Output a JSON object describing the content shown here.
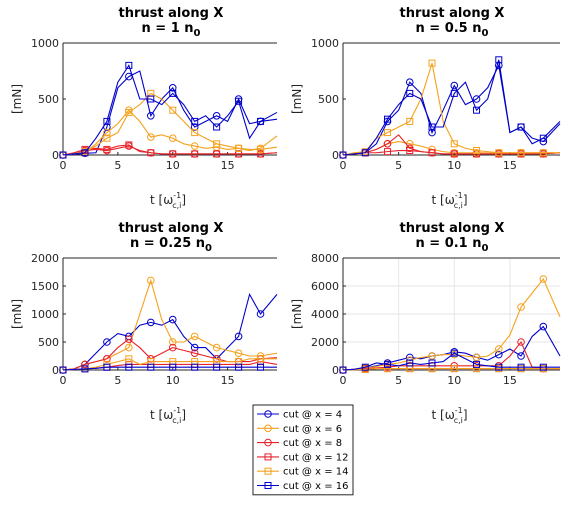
{
  "chart_data": [
    {
      "type": "line",
      "title": [
        "thrust along X",
        "n = 1 n",
        "0"
      ],
      "xlabel": "t [ω",
      "xlabel_sup": "-1",
      "xlabel_sub": "c,i",
      "xlabel_end": "]",
      "ylabel": "[mN]",
      "xlim": [
        0,
        19.5
      ],
      "ylim": [
        0,
        1000
      ],
      "xticks": [
        "0",
        "5",
        "10",
        "15"
      ],
      "xtick_values": [
        0,
        5,
        10,
        15
      ],
      "yticks": [
        "0",
        "500",
        "1000"
      ],
      "ytick_values": [
        0,
        500,
        1000
      ],
      "grid": false,
      "x": [
        0,
        1,
        2,
        3,
        4,
        5,
        6,
        7,
        8,
        9,
        10,
        11,
        12,
        13,
        14,
        15,
        16,
        17,
        18,
        19.5
      ],
      "series": [
        {
          "name": "cut @ x = 4",
          "values": [
            0,
            5,
            15,
            20,
            250,
            600,
            700,
            750,
            350,
            500,
            600,
            400,
            250,
            300,
            350,
            300,
            500,
            280,
            300,
            380
          ]
        },
        {
          "name": "cut @ x = 6",
          "values": [
            0,
            10,
            20,
            100,
            200,
            280,
            400,
            300,
            160,
            180,
            150,
            100,
            80,
            60,
            70,
            50,
            60,
            40,
            60,
            170
          ]
        },
        {
          "name": "cut @ x = 8",
          "values": [
            0,
            10,
            40,
            50,
            40,
            60,
            80,
            40,
            20,
            10,
            10,
            10,
            10,
            10,
            10,
            10,
            10,
            10,
            10,
            20
          ]
        },
        {
          "name": "cut @ x = 12",
          "values": [
            0,
            20,
            50,
            60,
            50,
            80,
            90,
            30,
            20,
            10,
            10,
            10,
            10,
            10,
            10,
            10,
            10,
            10,
            10,
            20
          ]
        },
        {
          "name": "cut @ x = 14",
          "values": [
            0,
            10,
            30,
            80,
            150,
            200,
            380,
            450,
            550,
            500,
            400,
            300,
            200,
            150,
            100,
            80,
            60,
            50,
            50,
            70
          ]
        },
        {
          "name": "cut @ x = 16",
          "values": [
            0,
            10,
            20,
            150,
            300,
            650,
            800,
            500,
            500,
            450,
            550,
            450,
            300,
            350,
            250,
            350,
            480,
            150,
            300,
            320
          ]
        }
      ]
    },
    {
      "type": "line",
      "title": [
        "thrust along X",
        "n = 0.5 n",
        "0"
      ],
      "xlabel": "t [ω",
      "xlabel_sup": "-1",
      "xlabel_sub": "c,i",
      "xlabel_end": "]",
      "ylabel": "[mN]",
      "xlim": [
        0,
        19.5
      ],
      "ylim": [
        0,
        1000
      ],
      "xticks": [
        "0",
        "5",
        "10",
        "15"
      ],
      "xtick_values": [
        0,
        5,
        10,
        15
      ],
      "yticks": [
        "0",
        "500",
        "1000"
      ],
      "ytick_values": [
        0,
        500,
        1000
      ],
      "grid": false,
      "x": [
        0,
        1,
        2,
        3,
        4,
        5,
        6,
        7,
        8,
        9,
        10,
        11,
        12,
        13,
        14,
        15,
        16,
        17,
        18,
        19.5
      ],
      "series": [
        {
          "name": "cut @ x = 4",
          "values": [
            0,
            10,
            20,
            100,
            300,
            400,
            650,
            550,
            200,
            400,
            620,
            450,
            500,
            600,
            800,
            200,
            250,
            150,
            120,
            280
          ]
        },
        {
          "name": "cut @ x = 6",
          "values": [
            0,
            10,
            20,
            50,
            100,
            120,
            100,
            80,
            50,
            30,
            20,
            20,
            20,
            20,
            20,
            20,
            20,
            20,
            20,
            20
          ]
        },
        {
          "name": "cut @ x = 8",
          "values": [
            0,
            10,
            20,
            50,
            100,
            180,
            60,
            30,
            20,
            10,
            10,
            10,
            10,
            10,
            10,
            10,
            10,
            10,
            10,
            20
          ]
        },
        {
          "name": "cut @ x = 12",
          "values": [
            0,
            10,
            20,
            20,
            30,
            40,
            40,
            30,
            20,
            10,
            10,
            10,
            10,
            10,
            10,
            10,
            10,
            10,
            10,
            20
          ]
        },
        {
          "name": "cut @ x = 14",
          "values": [
            0,
            20,
            30,
            150,
            200,
            250,
            300,
            500,
            820,
            300,
            100,
            60,
            40,
            30,
            20,
            20,
            20,
            20,
            20,
            20
          ]
        },
        {
          "name": "cut @ x = 16",
          "values": [
            0,
            10,
            20,
            150,
            320,
            450,
            550,
            500,
            250,
            250,
            550,
            650,
            400,
            500,
            850,
            200,
            250,
            100,
            150,
            300
          ]
        }
      ]
    },
    {
      "type": "line",
      "title": [
        "thrust along X",
        "n = 0.25 n",
        "0"
      ],
      "xlabel": "t [ω",
      "xlabel_sup": "-1",
      "xlabel_sub": "c,i",
      "xlabel_end": "]",
      "ylabel": "[mN]",
      "xlim": [
        0,
        19.5
      ],
      "ylim": [
        0,
        2000
      ],
      "xticks": [
        "0",
        "5",
        "10",
        "15"
      ],
      "xtick_values": [
        0,
        5,
        10,
        15
      ],
      "yticks": [
        "0",
        "500",
        "1000",
        "1500",
        "2000"
      ],
      "ytick_values": [
        0,
        500,
        1000,
        1500,
        2000
      ],
      "grid": false,
      "x": [
        0,
        1,
        2,
        3,
        4,
        5,
        6,
        7,
        8,
        9,
        10,
        11,
        12,
        13,
        14,
        15,
        16,
        17,
        18,
        19.5
      ],
      "series": [
        {
          "name": "cut @ x = 4",
          "values": [
            0,
            20,
            100,
            300,
            500,
            650,
            600,
            800,
            850,
            800,
            900,
            600,
            400,
            400,
            200,
            400,
            600,
            1350,
            1000,
            1350
          ]
        },
        {
          "name": "cut @ x = 6",
          "values": [
            0,
            20,
            100,
            150,
            200,
            300,
            400,
            1000,
            1600,
            900,
            500,
            500,
            600,
            500,
            400,
            350,
            300,
            250,
            250,
            300
          ]
        },
        {
          "name": "cut @ x = 8",
          "values": [
            0,
            20,
            100,
            150,
            200,
            400,
            550,
            400,
            200,
            300,
            400,
            350,
            300,
            250,
            200,
            150,
            150,
            150,
            200,
            220
          ]
        },
        {
          "name": "cut @ x = 12",
          "values": [
            0,
            10,
            20,
            30,
            50,
            80,
            100,
            100,
            100,
            100,
            100,
            100,
            100,
            100,
            100,
            100,
            100,
            100,
            150,
            100
          ]
        },
        {
          "name": "cut @ x = 14",
          "values": [
            0,
            10,
            20,
            50,
            100,
            150,
            200,
            100,
            150,
            150,
            150,
            150,
            150,
            150,
            150,
            150,
            150,
            200,
            200,
            200
          ]
        },
        {
          "name": "cut @ x = 16",
          "values": [
            0,
            10,
            20,
            30,
            50,
            50,
            50,
            50,
            50,
            50,
            50,
            50,
            50,
            50,
            50,
            50,
            50,
            50,
            50,
            50
          ]
        }
      ]
    },
    {
      "type": "line",
      "title": [
        "thrust along X",
        "n = 0.1 n",
        "0"
      ],
      "xlabel": "t [ω",
      "xlabel_sup": "-1",
      "xlabel_sub": "c,i",
      "xlabel_end": "]",
      "ylabel": "[mN]",
      "xlim": [
        0,
        19.5
      ],
      "ylim": [
        0,
        8000
      ],
      "xticks": [
        "0",
        "5",
        "10",
        "15"
      ],
      "xtick_values": [
        0,
        5,
        10,
        15
      ],
      "yticks": [
        "0",
        "2000",
        "4000",
        "6000",
        "8000"
      ],
      "ytick_values": [
        0,
        2000,
        4000,
        6000,
        8000
      ],
      "grid": true,
      "x": [
        0,
        1,
        2,
        3,
        4,
        5,
        6,
        7,
        8,
        9,
        10,
        11,
        12,
        13,
        14,
        15,
        16,
        17,
        18,
        19.5
      ],
      "series": [
        {
          "name": "cut @ x = 4",
          "values": [
            0,
            50,
            150,
            300,
            500,
            700,
            900,
            800,
            1000,
            1100,
            1300,
            1200,
            900,
            700,
            1100,
            1500,
            1000,
            2400,
            3100,
            1000
          ]
        },
        {
          "name": "cut @ x = 6",
          "values": [
            0,
            50,
            150,
            250,
            400,
            500,
            700,
            900,
            1000,
            1100,
            1100,
            1000,
            900,
            1000,
            1500,
            2500,
            4500,
            5500,
            6500,
            3800
          ]
        },
        {
          "name": "cut @ x = 8",
          "values": [
            0,
            50,
            100,
            150,
            200,
            300,
            300,
            300,
            300,
            300,
            300,
            300,
            300,
            300,
            300,
            1000,
            2000,
            200,
            100,
            100
          ]
        },
        {
          "name": "cut @ x = 12",
          "values": [
            0,
            20,
            50,
            100,
            100,
            100,
            100,
            100,
            100,
            100,
            100,
            100,
            100,
            100,
            100,
            100,
            100,
            100,
            100,
            100
          ]
        },
        {
          "name": "cut @ x = 14",
          "values": [
            0,
            20,
            50,
            100,
            100,
            100,
            100,
            100,
            100,
            100,
            100,
            100,
            100,
            100,
            100,
            100,
            100,
            100,
            100,
            100
          ]
        },
        {
          "name": "cut @ x = 16",
          "values": [
            0,
            50,
            200,
            500,
            400,
            300,
            500,
            400,
            500,
            600,
            1200,
            800,
            400,
            300,
            200,
            200,
            200,
            200,
            200,
            200
          ]
        }
      ]
    }
  ],
  "legend": {
    "entries": [
      {
        "label": "cut @ x = 4",
        "color": "#0000cc",
        "marker": "circle"
      },
      {
        "label": "cut @ x = 6",
        "color": "#f5a11c",
        "marker": "circle"
      },
      {
        "label": "cut @ x = 8",
        "color": "#e8212a",
        "marker": "circle"
      },
      {
        "label": "cut @ x = 12",
        "color": "#e8212a",
        "marker": "square"
      },
      {
        "label": "cut @ x = 14",
        "color": "#f5a11c",
        "marker": "square"
      },
      {
        "label": "cut @ x = 16",
        "color": "#0000cc",
        "marker": "square"
      }
    ],
    "placement": "bottom-center"
  },
  "colors": {
    "blue": "#0000cc",
    "orange": "#f5a11c",
    "red": "#e8212a",
    "axis": "#262626",
    "grid": "#e6e6e6"
  }
}
